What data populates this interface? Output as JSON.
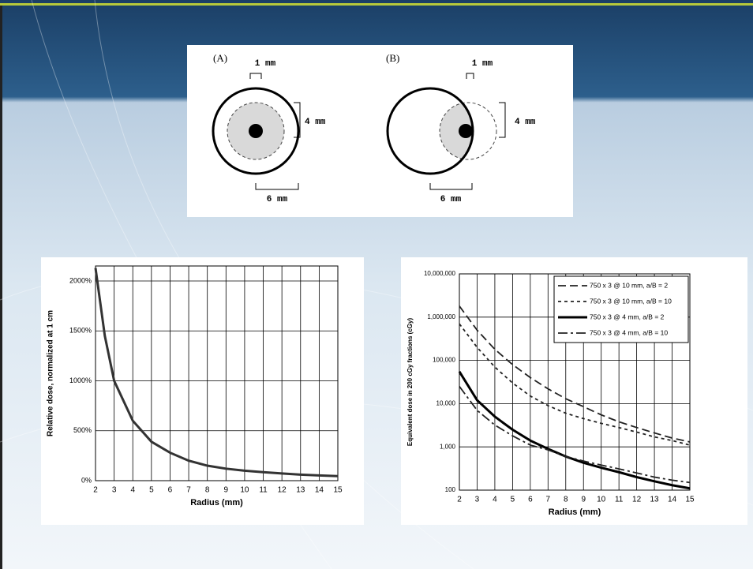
{
  "diagram": {
    "panels": [
      {
        "label": "(A)",
        "top": "1 mm",
        "side": "4 mm",
        "bottom": "6 mm"
      },
      {
        "label": "(B)",
        "top": "1 mm",
        "side": "4 mm",
        "bottom": "6 mm"
      }
    ]
  },
  "chart_data": [
    {
      "type": "line",
      "x_label": "Radius (mm)",
      "y_label": "Relative dose, normalized at 1 cm",
      "xlim": [
        2,
        15
      ],
      "xticks": [
        2,
        3,
        4,
        5,
        6,
        7,
        8,
        9,
        10,
        11,
        12,
        13,
        14,
        15
      ],
      "ylim": [
        0,
        2150
      ],
      "yticks": [
        {
          "value": 0,
          "label": "0%"
        },
        {
          "value": 500,
          "label": "500%"
        },
        {
          "value": 1000,
          "label": "1000%"
        },
        {
          "value": 1500,
          "label": "1500%"
        },
        {
          "value": 2000,
          "label": "2000%"
        }
      ],
      "grid": true,
      "log_y": false,
      "series": [
        {
          "color": "#333333",
          "line_style": "solid",
          "x": [
            2,
            2.5,
            3,
            4,
            5,
            6,
            7,
            8,
            9,
            10,
            11,
            12,
            13,
            14,
            15
          ],
          "values": [
            2130,
            1450,
            1000,
            600,
            390,
            280,
            200,
            150,
            120,
            100,
            85,
            72,
            60,
            52,
            45
          ]
        }
      ]
    },
    {
      "type": "line",
      "x_label": "Radius (mm)",
      "y_label": "Equivalent dose in 200 cGy fractions (cGy)",
      "xlim": [
        2,
        15
      ],
      "xticks": [
        2,
        3,
        4,
        5,
        6,
        7,
        8,
        9,
        10,
        11,
        12,
        13,
        14,
        15
      ],
      "ylim": [
        100,
        10000000
      ],
      "yticks": [
        100,
        {
          "value": 1000,
          "label": "1,000"
        },
        {
          "value": 10000,
          "label": "10,000"
        },
        {
          "value": 100000,
          "label": "100,000"
        },
        {
          "value": 1000000,
          "label": "1,000,000"
        },
        {
          "value": 10000000,
          "label": "10,000,000"
        }
      ],
      "grid": true,
      "log_y": true,
      "legend": "upper right",
      "series": [
        {
          "name": "750 x 3 @ 10 mm, a/B = 2",
          "color": "#222222",
          "line_style": "long-dash",
          "x": [
            2,
            3,
            4,
            5,
            6,
            7,
            8,
            9,
            10,
            11,
            12,
            13,
            14,
            15
          ],
          "values": [
            1800000,
            500000,
            180000,
            80000,
            40000,
            22000,
            13000,
            8500,
            5500,
            3800,
            2800,
            2100,
            1600,
            1300
          ]
        },
        {
          "name": "750 x 3 @ 10 mm, a/B = 10",
          "color": "#222222",
          "line_style": "short-dash",
          "x": [
            2,
            3,
            4,
            5,
            6,
            7,
            8,
            9,
            10,
            11,
            12,
            13,
            14,
            15
          ],
          "values": [
            700000,
            200000,
            70000,
            30000,
            15000,
            9000,
            6000,
            4500,
            3500,
            2800,
            2200,
            1700,
            1400,
            1100
          ]
        },
        {
          "name": "750 x 3 @ 4 mm, a/B = 2",
          "color": "#000000",
          "line_style": "solid",
          "x": [
            2,
            3,
            4,
            5,
            6,
            7,
            8,
            9,
            10,
            11,
            12,
            13,
            14,
            15
          ],
          "values": [
            55000,
            12000,
            5000,
            2500,
            1400,
            900,
            600,
            430,
            330,
            260,
            200,
            160,
            130,
            110
          ]
        },
        {
          "name": "750 x 3 @ 4 mm, a/B = 10",
          "color": "#222222",
          "line_style": "dash-dot",
          "x": [
            2,
            3,
            4,
            5,
            6,
            7,
            8,
            9,
            10,
            11,
            12,
            13,
            14,
            15
          ],
          "values": [
            25000,
            7000,
            3200,
            1800,
            1100,
            850,
            600,
            470,
            380,
            310,
            250,
            200,
            170,
            150
          ]
        }
      ]
    }
  ]
}
